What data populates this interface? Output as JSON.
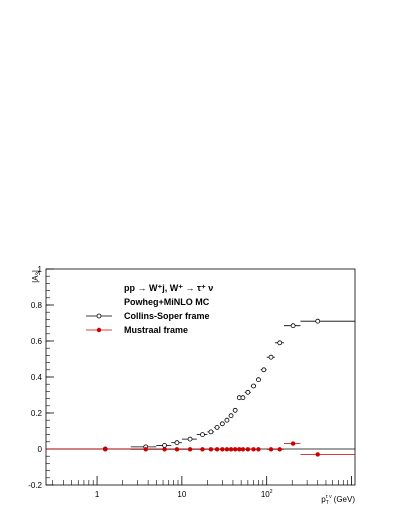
{
  "chart_data": {
    "type": "scatter",
    "title": "",
    "xlabel_base": "p",
    "xlabel_sub": "T",
    "xlabel_sup": "τ ν",
    "xlabel_unit": "(GeV)",
    "ylabel": "|A",
    "ylabel_sub": "3",
    "ylabel_close": "|",
    "xscale": "log",
    "xlim": [
      0.25,
      1100
    ],
    "ylim": [
      -0.2,
      1.0
    ],
    "yticks": [
      -0.2,
      0,
      0.2,
      0.4,
      0.6,
      0.8,
      1
    ],
    "ytick_labels": [
      "-0.2",
      "0",
      "0.2",
      "0.4",
      "0.6",
      "0.8",
      "1"
    ],
    "xticks_major": [
      1,
      10,
      100
    ],
    "xtick_labels": [
      "1",
      "10",
      "10"
    ],
    "xtick_label_sup": [
      "",
      "",
      "2"
    ],
    "grid": false,
    "legend": {
      "position": "top-left",
      "title_line1": "pp → W⁺j, W⁺ → τ⁺ ν",
      "title_line2": "Powheg+MiNLO MC",
      "entries": [
        "Collins-Soper frame",
        "Mustraal frame"
      ]
    },
    "series": [
      {
        "name": "Collins-Soper frame",
        "marker": "open-circle",
        "color": "#000000",
        "points": [
          {
            "x": 1.25,
            "xlo": 0.25,
            "xhi": 2.5,
            "y": 0.0
          },
          {
            "x": 3.75,
            "xlo": 2.5,
            "xhi": 5,
            "y": 0.012
          },
          {
            "x": 6.25,
            "xlo": 5,
            "xhi": 7.5,
            "y": 0.02
          },
          {
            "x": 8.75,
            "xlo": 7.5,
            "xhi": 10,
            "y": 0.035
          },
          {
            "x": 12.5,
            "xlo": 10,
            "xhi": 15,
            "y": 0.055
          },
          {
            "x": 17.5,
            "xlo": 15,
            "xhi": 20,
            "y": 0.08
          },
          {
            "x": 22,
            "xlo": 20,
            "xhi": 24,
            "y": 0.095
          },
          {
            "x": 26,
            "xlo": 24,
            "xhi": 28,
            "y": 0.12
          },
          {
            "x": 30,
            "xlo": 28,
            "xhi": 32,
            "y": 0.14
          },
          {
            "x": 34,
            "xlo": 32,
            "xhi": 36,
            "y": 0.16
          },
          {
            "x": 38,
            "xlo": 36,
            "xhi": 40,
            "y": 0.185
          },
          {
            "x": 42.5,
            "xlo": 40,
            "xhi": 45,
            "y": 0.215
          },
          {
            "x": 47.5,
            "xlo": 45,
            "xhi": 50,
            "y": 0.285
          },
          {
            "x": 52.5,
            "xlo": 50,
            "xhi": 55,
            "y": 0.285
          },
          {
            "x": 60,
            "xlo": 55,
            "xhi": 65,
            "y": 0.315
          },
          {
            "x": 70,
            "xlo": 65,
            "xhi": 75,
            "y": 0.35
          },
          {
            "x": 80,
            "xlo": 75,
            "xhi": 85,
            "y": 0.385
          },
          {
            "x": 92.5,
            "xlo": 85,
            "xhi": 100,
            "y": 0.44
          },
          {
            "x": 112.5,
            "xlo": 100,
            "xhi": 125,
            "y": 0.51
          },
          {
            "x": 142.5,
            "xlo": 125,
            "xhi": 160,
            "y": 0.59
          },
          {
            "x": 205,
            "xlo": 160,
            "xhi": 250,
            "y": 0.685
          },
          {
            "x": 400,
            "xlo": 250,
            "xhi": 1100,
            "y": 0.71
          }
        ]
      },
      {
        "name": "Mustraal frame",
        "marker": "filled-circle",
        "color": "#cc0000",
        "points": [
          {
            "x": 1.25,
            "xlo": 0.25,
            "xhi": 2.5,
            "y": 0.0
          },
          {
            "x": 3.75,
            "xlo": 2.5,
            "xhi": 5,
            "y": -0.002
          },
          {
            "x": 6.25,
            "xlo": 5,
            "xhi": 7.5,
            "y": -0.002
          },
          {
            "x": 8.75,
            "xlo": 7.5,
            "xhi": 10,
            "y": -0.002
          },
          {
            "x": 12.5,
            "xlo": 10,
            "xhi": 15,
            "y": -0.002
          },
          {
            "x": 17.5,
            "xlo": 15,
            "xhi": 20,
            "y": -0.002
          },
          {
            "x": 22,
            "xlo": 20,
            "xhi": 24,
            "y": -0.002
          },
          {
            "x": 26,
            "xlo": 24,
            "xhi": 28,
            "y": -0.002
          },
          {
            "x": 30,
            "xlo": 28,
            "xhi": 32,
            "y": -0.002
          },
          {
            "x": 34,
            "xlo": 32,
            "xhi": 36,
            "y": -0.002
          },
          {
            "x": 38,
            "xlo": 36,
            "xhi": 40,
            "y": -0.002
          },
          {
            "x": 42.5,
            "xlo": 40,
            "xhi": 45,
            "y": -0.002
          },
          {
            "x": 47.5,
            "xlo": 45,
            "xhi": 50,
            "y": -0.002
          },
          {
            "x": 52.5,
            "xlo": 50,
            "xhi": 55,
            "y": -0.002
          },
          {
            "x": 60,
            "xlo": 55,
            "xhi": 65,
            "y": -0.002
          },
          {
            "x": 70,
            "xlo": 65,
            "xhi": 75,
            "y": -0.002
          },
          {
            "x": 80,
            "xlo": 75,
            "xhi": 85,
            "y": -0.002
          },
          {
            "x": 112.5,
            "xlo": 100,
            "xhi": 125,
            "y": -0.002
          },
          {
            "x": 142.5,
            "xlo": 125,
            "xhi": 160,
            "y": -0.002
          },
          {
            "x": 205,
            "xlo": 160,
            "xhi": 250,
            "y": 0.03
          },
          {
            "x": 400,
            "xlo": 250,
            "xhi": 1100,
            "y": -0.03
          }
        ]
      }
    ]
  }
}
